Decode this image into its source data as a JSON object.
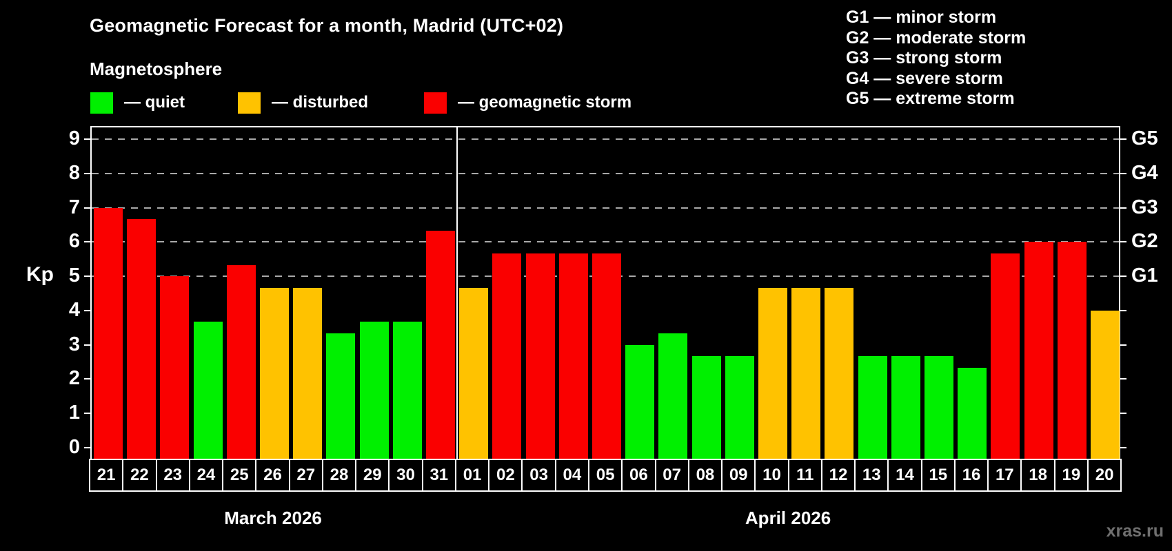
{
  "title": "Geomagnetic Forecast for a month, Madrid (UTC+02)",
  "subtitle": "Magnetosphere",
  "status_legend": {
    "items": [
      {
        "key": "quiet",
        "label": "— quiet"
      },
      {
        "key": "disturbed",
        "label": "— disturbed"
      },
      {
        "key": "storm",
        "label": "— geomagnetic storm"
      }
    ]
  },
  "colors": {
    "quiet": "#00f000",
    "disturbed": "#ffc200",
    "storm": "#fa0000",
    "grid": "#a9a9a9",
    "frame": "#ffffff",
    "watermark": "#6f6f6f",
    "background": "#000000"
  },
  "g_scale_legend": {
    "items": [
      "G1 — minor storm",
      "G2 — moderate storm",
      "G3 — strong storm",
      "G4 — severe storm",
      "G5 — extreme storm"
    ]
  },
  "y_axis": {
    "title": "Kp",
    "ticks": [
      0,
      1,
      2,
      3,
      4,
      5,
      6,
      7,
      8,
      9
    ]
  },
  "right_axis": {
    "labels": [
      {
        "value": 5,
        "label": "G1"
      },
      {
        "value": 6,
        "label": "G2"
      },
      {
        "value": 7,
        "label": "G3"
      },
      {
        "value": 8,
        "label": "G4"
      },
      {
        "value": 9,
        "label": "G5"
      }
    ]
  },
  "watermark": "xras.ru",
  "chart_data": {
    "type": "bar",
    "title": "Geomagnetic Forecast for a month, Madrid (UTC+02)",
    "ylabel": "Kp",
    "ylim": [
      0,
      9
    ],
    "gridlines_at": [
      5,
      6,
      7,
      8,
      9
    ],
    "grid": "dashed-horizontal",
    "legend_position": "top-left",
    "categories": [
      "21",
      "22",
      "23",
      "24",
      "25",
      "26",
      "27",
      "28",
      "29",
      "30",
      "31",
      "01",
      "02",
      "03",
      "04",
      "05",
      "06",
      "07",
      "08",
      "09",
      "10",
      "11",
      "12",
      "13",
      "14",
      "15",
      "16",
      "17",
      "18",
      "19",
      "20"
    ],
    "values": [
      7.0,
      6.67,
      5.0,
      3.67,
      5.33,
      4.67,
      4.67,
      3.33,
      3.67,
      3.67,
      6.33,
      4.67,
      5.67,
      5.67,
      5.67,
      5.67,
      3.0,
      3.33,
      2.67,
      2.67,
      4.67,
      4.67,
      4.67,
      2.67,
      2.67,
      2.67,
      2.33,
      5.67,
      6.0,
      6.0,
      4.0
    ],
    "statuses": [
      "storm",
      "storm",
      "storm",
      "quiet",
      "storm",
      "disturbed",
      "disturbed",
      "quiet",
      "quiet",
      "quiet",
      "storm",
      "disturbed",
      "storm",
      "storm",
      "storm",
      "storm",
      "quiet",
      "quiet",
      "quiet",
      "quiet",
      "disturbed",
      "disturbed",
      "disturbed",
      "quiet",
      "quiet",
      "quiet",
      "quiet",
      "storm",
      "storm",
      "storm",
      "disturbed"
    ],
    "months": [
      {
        "label": "March 2026",
        "days": 11
      },
      {
        "label": "April 2026",
        "days": 20
      }
    ]
  }
}
